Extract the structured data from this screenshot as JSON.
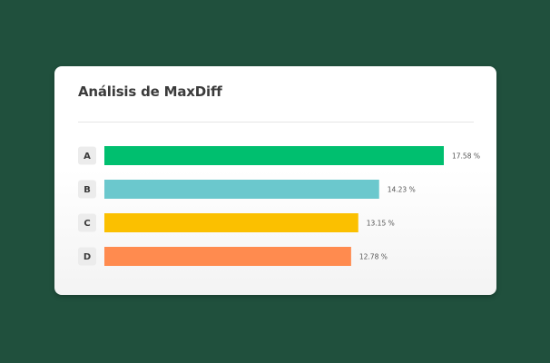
{
  "card": {
    "title": "Análisis de MaxDiff"
  },
  "chart_data": {
    "type": "bar",
    "orientation": "horizontal",
    "title": "Análisis de MaxDiff",
    "categories": [
      "A",
      "B",
      "C",
      "D"
    ],
    "values": [
      17.58,
      14.23,
      13.15,
      12.78
    ],
    "value_labels": [
      "17.58 %",
      "14.23 %",
      "13.15 %",
      "12.78 %"
    ],
    "colors": [
      "#00bf6f",
      "#6bc8cd",
      "#fbc000",
      "#ff8b4f"
    ],
    "xlim": [
      0,
      17.58
    ],
    "grid": false,
    "legend": "none"
  }
}
